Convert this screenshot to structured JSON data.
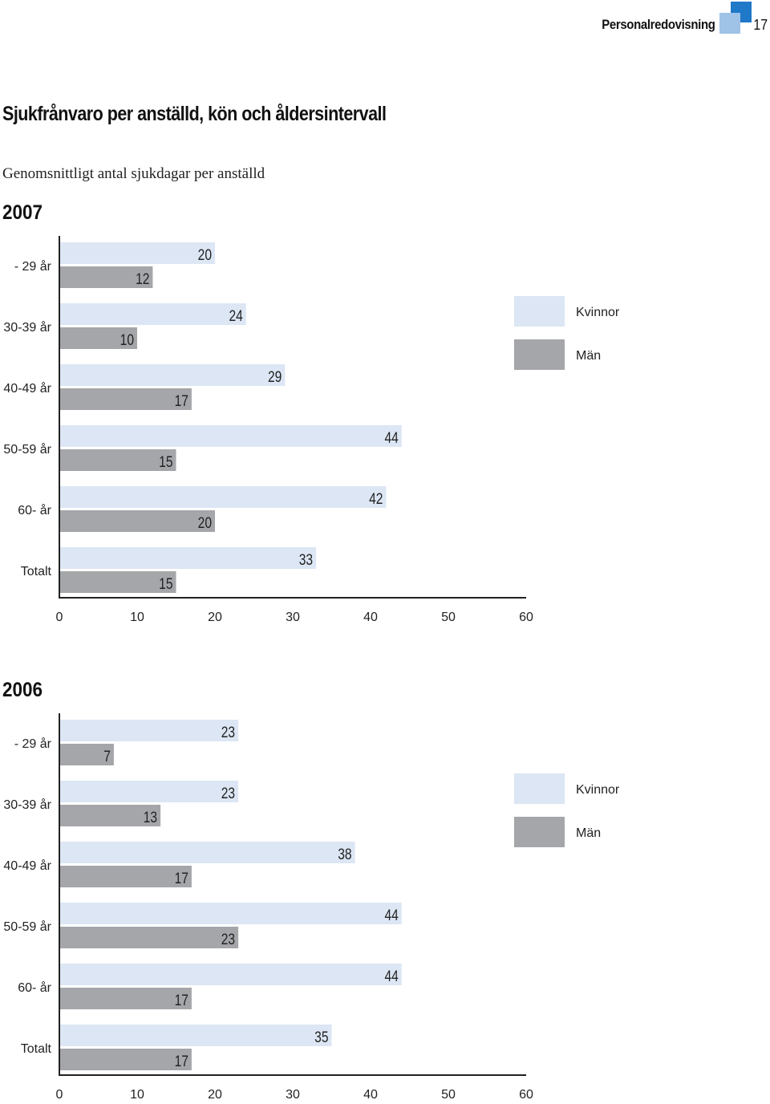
{
  "header": {
    "section": "Personalredovisning",
    "page_number": "17"
  },
  "title": "Sjukfrånvaro per anställd, kön och åldersintervall",
  "subtitle": "Genomsnittligt antal sjukdagar per anställd",
  "colors": {
    "kvinnor": "#dce6f4",
    "man": "#a5a6aa",
    "logo_dark": "#1f78c8",
    "logo_light": "#9fc2e7"
  },
  "chart_data": [
    {
      "type": "bar",
      "orientation": "horizontal",
      "title": "2007",
      "categories": [
        "- 29 år",
        "30-39 år",
        "40-49 år",
        "50-59 år",
        "60- år",
        "Totalt"
      ],
      "series": [
        {
          "name": "Kvinnor",
          "values": [
            20,
            24,
            29,
            44,
            42,
            33
          ]
        },
        {
          "name": "Män",
          "values": [
            12,
            10,
            17,
            15,
            20,
            15
          ]
        }
      ],
      "xlim": [
        0,
        60
      ],
      "xticks": [
        "0",
        "10",
        "20",
        "30",
        "40",
        "50",
        "60"
      ],
      "xlabel": "",
      "ylabel": "",
      "grid": false,
      "legend_position": "right"
    },
    {
      "type": "bar",
      "orientation": "horizontal",
      "title": "2006",
      "categories": [
        "- 29 år",
        "30-39 år",
        "40-49 år",
        "50-59 år",
        "60- år",
        "Totalt"
      ],
      "series": [
        {
          "name": "Kvinnor",
          "values": [
            23,
            23,
            38,
            44,
            44,
            35
          ]
        },
        {
          "name": "Män",
          "values": [
            7,
            13,
            17,
            23,
            17,
            17
          ]
        }
      ],
      "xlim": [
        0,
        60
      ],
      "xticks": [
        "0",
        "10",
        "20",
        "30",
        "40",
        "50",
        "60"
      ],
      "xlabel": "",
      "ylabel": "",
      "grid": false,
      "legend_position": "right"
    }
  ]
}
